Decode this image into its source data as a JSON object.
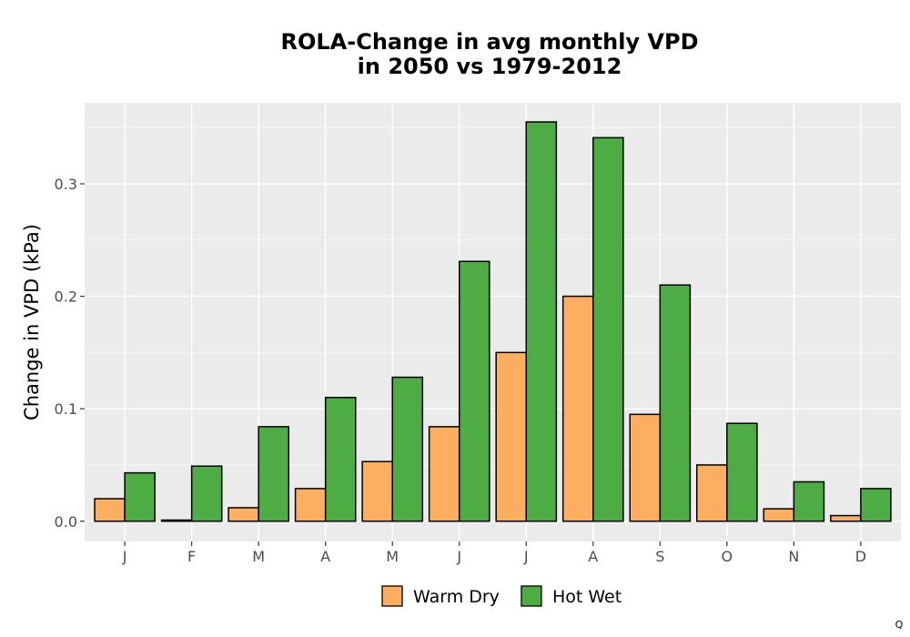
{
  "chart_data": {
    "type": "bar",
    "title": [
      "ROLA-Change in avg monthly VPD",
      "in 2050 vs 1979-2012"
    ],
    "xlabel": "",
    "ylabel": "Change in VPD (kPa)",
    "categories": [
      "J",
      "F",
      "M",
      "A",
      "M",
      "J",
      "J",
      "A",
      "S",
      "O",
      "N",
      "D"
    ],
    "ylim": [
      -0.018,
      0.372
    ],
    "yticks": [
      0.0,
      0.1,
      0.2,
      0.3
    ],
    "ytick_labels": [
      "0.0",
      "0.1",
      "0.2",
      "0.3"
    ],
    "grid": true,
    "legend_position": "bottom",
    "series": [
      {
        "name": "Warm Dry",
        "color": "#FDAE61",
        "values": [
          0.02,
          0.001,
          0.012,
          0.029,
          0.053,
          0.084,
          0.15,
          0.2,
          0.095,
          0.05,
          0.011,
          0.005
        ]
      },
      {
        "name": "Hot Wet",
        "color": "#4DAC43",
        "values": [
          0.043,
          0.049,
          0.084,
          0.11,
          0.128,
          0.231,
          0.355,
          0.341,
          0.21,
          0.087,
          0.035,
          0.029
        ]
      }
    ],
    "panel_background": "#EBEBEB",
    "gridline_color": "#FFFFFF"
  },
  "corner_note": "Q"
}
